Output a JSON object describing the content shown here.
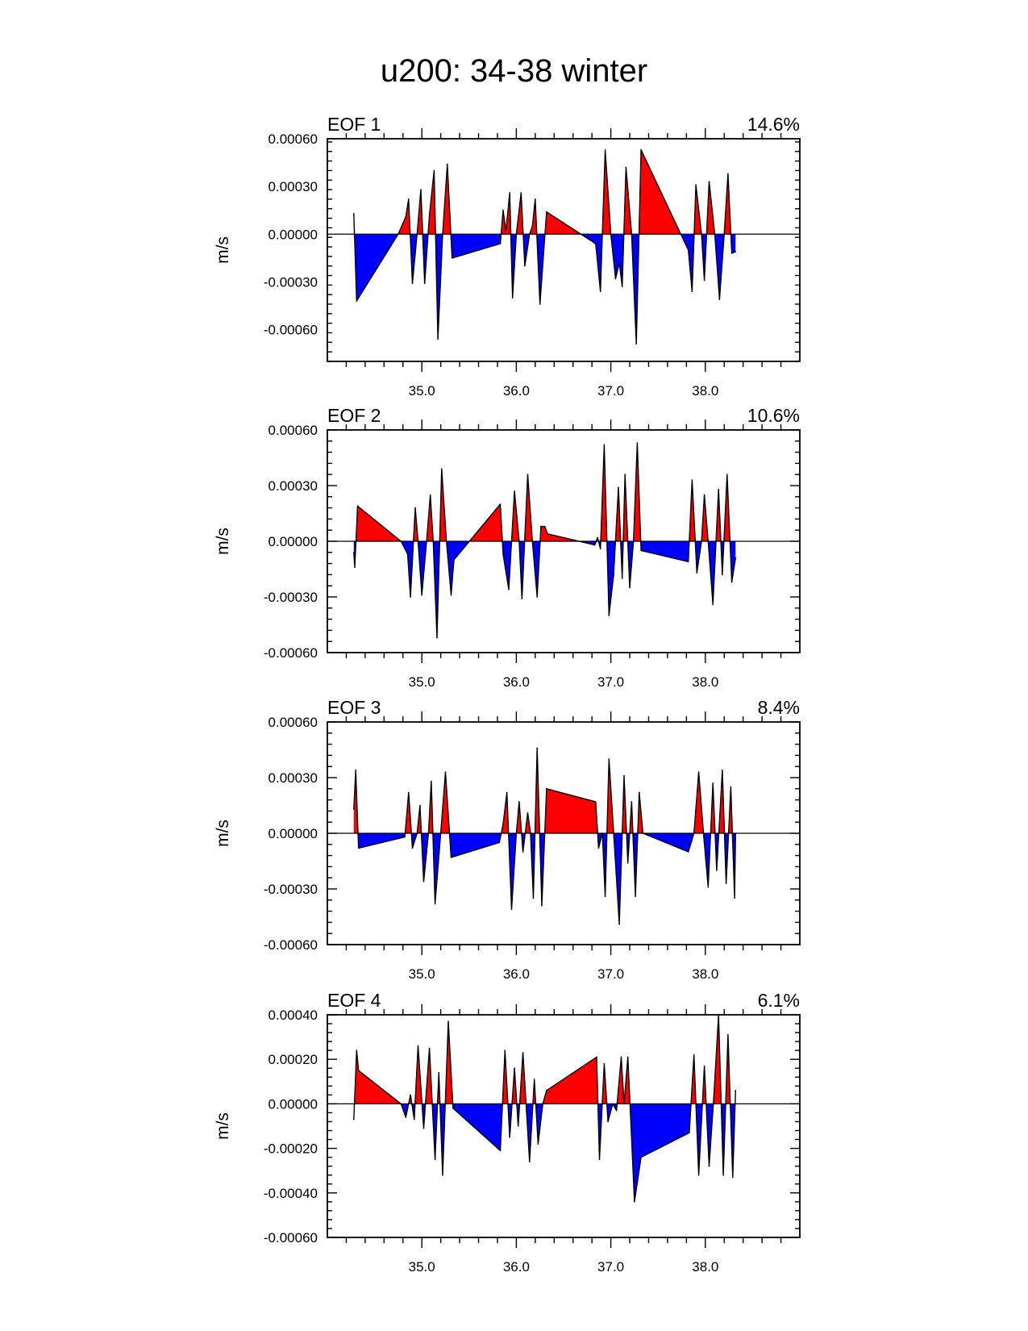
{
  "title": "u200: 34-38 winter",
  "colors": {
    "positive": "#ff0000",
    "negative": "#0000ff",
    "line": "#000000"
  },
  "chart_data": [
    {
      "type": "area",
      "panel_label": "EOF 1",
      "variance_label": "14.6%",
      "ylabel": "m/s",
      "ylim": [
        -0.0008,
        0.0006
      ],
      "yticks": [
        -0.0006,
        -0.0003,
        0.0,
        0.0003,
        0.0006
      ],
      "ytick_labels": [
        "-0.00060",
        "-0.00030",
        "0.00000",
        "0.00030",
        "0.00060"
      ],
      "xlim": [
        34.0,
        39.0
      ],
      "xticks": [
        35.0,
        36.0,
        37.0,
        38.0
      ],
      "xtick_labels": [
        "35.0",
        "36.0",
        "37.0",
        "38.0"
      ],
      "points": [
        [
          34.28,
          0.00013
        ],
        [
          34.31,
          -0.00042
        ],
        [
          34.75,
          0.0
        ],
        [
          34.83,
          0.00011
        ],
        [
          34.86,
          0.00022
        ],
        [
          34.9,
          -0.00031
        ],
        [
          34.95,
          0.0
        ],
        [
          34.99,
          0.00028
        ],
        [
          35.03,
          -0.00031
        ],
        [
          35.08,
          0.00012
        ],
        [
          35.13,
          0.0004
        ],
        [
          35.17,
          -0.00066
        ],
        [
          35.22,
          0.0
        ],
        [
          35.27,
          0.00044
        ],
        [
          35.32,
          -0.00015
        ],
        [
          35.83,
          -6e-05
        ],
        [
          35.86,
          0.00015
        ],
        [
          35.89,
          2e-05
        ],
        [
          35.93,
          0.00026
        ],
        [
          35.96,
          -0.0004
        ],
        [
          36.0,
          0.0
        ],
        [
          36.05,
          0.00026
        ],
        [
          36.09,
          -0.0002
        ],
        [
          36.14,
          0.0
        ],
        [
          36.17,
          5e-05
        ],
        [
          36.2,
          0.00022
        ],
        [
          36.25,
          -0.00044
        ],
        [
          36.32,
          0.00014
        ],
        [
          36.84,
          -6e-05
        ],
        [
          36.89,
          -0.00036
        ],
        [
          36.94,
          0.00053
        ],
        [
          37.0,
          0.0
        ],
        [
          37.05,
          -0.00028
        ],
        [
          37.09,
          -0.00018
        ],
        [
          37.12,
          -0.00033
        ],
        [
          37.16,
          0.00042
        ],
        [
          37.22,
          0.0
        ],
        [
          37.27,
          -0.00069
        ],
        [
          37.32,
          0.00053
        ],
        [
          37.82,
          -0.0001
        ],
        [
          37.86,
          -0.00036
        ],
        [
          37.9,
          0.00031
        ],
        [
          37.96,
          0.0
        ],
        [
          37.99,
          -0.00029
        ],
        [
          38.04,
          0.00033
        ],
        [
          38.1,
          0.0
        ],
        [
          38.15,
          -0.00041
        ],
        [
          38.2,
          0.0
        ],
        [
          38.24,
          0.00038
        ],
        [
          38.28,
          -0.00012
        ],
        [
          38.32,
          -0.00011
        ]
      ]
    },
    {
      "type": "area",
      "panel_label": "EOF 2",
      "variance_label": "10.6%",
      "ylabel": "m/s",
      "ylim": [
        -0.0006,
        0.0006
      ],
      "yticks": [
        -0.0006,
        -0.0003,
        0.0,
        0.0003,
        0.0006
      ],
      "ytick_labels": [
        "-0.00060",
        "-0.00030",
        "0.00000",
        "0.00030",
        "0.00060"
      ],
      "xlim": [
        34.0,
        39.0
      ],
      "xticks": [
        35.0,
        36.0,
        37.0,
        38.0
      ],
      "xtick_labels": [
        "35.0",
        "36.0",
        "37.0",
        "38.0"
      ],
      "points": [
        [
          34.28,
          -6e-05
        ],
        [
          34.29,
          -0.00014
        ],
        [
          34.32,
          0.00019
        ],
        [
          34.78,
          0.0
        ],
        [
          34.85,
          -7e-05
        ],
        [
          34.88,
          -0.0003
        ],
        [
          34.93,
          0.00018
        ],
        [
          34.96,
          0.0
        ],
        [
          35.0,
          -0.00029
        ],
        [
          35.05,
          0.0
        ],
        [
          35.09,
          0.00025
        ],
        [
          35.12,
          0.0
        ],
        [
          35.16,
          -0.00052
        ],
        [
          35.21,
          0.00039
        ],
        [
          35.26,
          0.0
        ],
        [
          35.31,
          -0.00029
        ],
        [
          35.34,
          -0.0001
        ],
        [
          35.83,
          0.0002
        ],
        [
          35.86,
          -7e-05
        ],
        [
          35.92,
          -0.00026
        ],
        [
          35.98,
          0.00027
        ],
        [
          36.03,
          0.0
        ],
        [
          36.06,
          -0.00031
        ],
        [
          36.12,
          0.00036
        ],
        [
          36.17,
          0.0
        ],
        [
          36.22,
          -0.0003
        ],
        [
          36.26,
          8e-05
        ],
        [
          36.3,
          8e-05
        ],
        [
          36.33,
          4e-05
        ],
        [
          36.83,
          -2e-05
        ],
        [
          36.86,
          2e-05
        ],
        [
          36.89,
          -4e-05
        ],
        [
          36.93,
          0.00052
        ],
        [
          36.98,
          -0.0004
        ],
        [
          37.03,
          -0.00018
        ],
        [
          37.08,
          0.00029
        ],
        [
          37.12,
          -0.0002
        ],
        [
          37.15,
          0.00036
        ],
        [
          37.2,
          -0.00025
        ],
        [
          37.24,
          0.0
        ],
        [
          37.28,
          0.00053
        ],
        [
          37.32,
          -5e-05
        ],
        [
          37.82,
          -0.00011
        ],
        [
          37.86,
          0.00033
        ],
        [
          37.91,
          -0.00017
        ],
        [
          37.96,
          0.0
        ],
        [
          37.99,
          0.00025
        ],
        [
          38.03,
          0.0
        ],
        [
          38.08,
          -0.00034
        ],
        [
          38.14,
          0.00028
        ],
        [
          38.18,
          -0.00018
        ],
        [
          38.23,
          0.00036
        ],
        [
          38.28,
          -0.00022
        ],
        [
          38.32,
          -9e-05
        ]
      ]
    },
    {
      "type": "area",
      "panel_label": "EOF 3",
      "variance_label": "8.4%",
      "ylabel": "m/s",
      "ylim": [
        -0.0006,
        0.0006
      ],
      "yticks": [
        -0.0006,
        -0.0003,
        0.0,
        0.0003,
        0.0006
      ],
      "ytick_labels": [
        "-0.00060",
        "-0.00030",
        "0.00000",
        "0.00030",
        "0.00060"
      ],
      "xlim": [
        34.0,
        39.0
      ],
      "xticks": [
        35.0,
        36.0,
        37.0,
        38.0
      ],
      "xtick_labels": [
        "35.0",
        "36.0",
        "37.0",
        "38.0"
      ],
      "points": [
        [
          34.28,
          0.00013
        ],
        [
          34.3,
          0.00034
        ],
        [
          34.33,
          -8e-05
        ],
        [
          34.82,
          -2e-05
        ],
        [
          34.86,
          0.00022
        ],
        [
          34.9,
          -8e-05
        ],
        [
          34.95,
          0.0
        ],
        [
          34.98,
          0.00015
        ],
        [
          35.02,
          -0.00026
        ],
        [
          35.07,
          0.0
        ],
        [
          35.1,
          0.00028
        ],
        [
          35.14,
          -0.00038
        ],
        [
          35.2,
          0.0
        ],
        [
          35.25,
          0.00033
        ],
        [
          35.31,
          -0.00013
        ],
        [
          35.82,
          -5e-05
        ],
        [
          35.86,
          5e-05
        ],
        [
          35.9,
          0.00022
        ],
        [
          35.95,
          -0.00041
        ],
        [
          36.0,
          0.0
        ],
        [
          36.03,
          0.00017
        ],
        [
          36.07,
          -0.0001
        ],
        [
          36.12,
          0.00011
        ],
        [
          36.15,
          0.0
        ],
        [
          36.18,
          -0.00035
        ],
        [
          36.22,
          0.00046
        ],
        [
          36.27,
          -0.00039
        ],
        [
          36.32,
          0.00024
        ],
        [
          36.84,
          0.00017
        ],
        [
          36.87,
          -8e-05
        ],
        [
          36.91,
          0.0
        ],
        [
          36.94,
          -0.00034
        ],
        [
          36.98,
          0.0004
        ],
        [
          37.03,
          0.0
        ],
        [
          37.09,
          -0.00049
        ],
        [
          37.14,
          0.00031
        ],
        [
          37.18,
          -0.00016
        ],
        [
          37.22,
          0.00017
        ],
        [
          37.26,
          -0.00034
        ],
        [
          37.3,
          0.00022
        ],
        [
          37.34,
          0.0
        ],
        [
          37.82,
          -0.0001
        ],
        [
          37.88,
          0.0
        ],
        [
          37.93,
          0.00033
        ],
        [
          37.98,
          0.0
        ],
        [
          38.03,
          -0.00029
        ],
        [
          38.08,
          0.00027
        ],
        [
          38.12,
          -0.0002
        ],
        [
          38.18,
          0.00034
        ],
        [
          38.22,
          -0.00027
        ],
        [
          38.27,
          0.00025
        ],
        [
          38.31,
          -0.00035
        ],
        [
          38.32,
          0.0
        ]
      ]
    },
    {
      "type": "area",
      "panel_label": "EOF 4",
      "variance_label": "6.1%",
      "ylabel": "m/s",
      "ylim": [
        -0.0006,
        0.0004
      ],
      "yticks": [
        -0.0006,
        -0.0004,
        -0.0002,
        0.0,
        0.0002,
        0.0004
      ],
      "ytick_labels": [
        "-0.00060",
        "-0.00040",
        "-0.00020",
        "0.00000",
        "0.00020",
        "0.00040"
      ],
      "xlim": [
        34.0,
        39.0
      ],
      "xticks": [
        35.0,
        36.0,
        37.0,
        38.0
      ],
      "xtick_labels": [
        "35.0",
        "36.0",
        "37.0",
        "38.0"
      ],
      "points": [
        [
          34.28,
          -7e-05
        ],
        [
          34.31,
          0.00024
        ],
        [
          34.33,
          0.00015
        ],
        [
          34.78,
          0.0
        ],
        [
          34.83,
          -6e-05
        ],
        [
          34.88,
          4e-05
        ],
        [
          34.92,
          -7e-05
        ],
        [
          34.96,
          0.00026
        ],
        [
          35.02,
          -0.00011
        ],
        [
          35.08,
          0.00025
        ],
        [
          35.14,
          -0.00025
        ],
        [
          35.18,
          0.00014
        ],
        [
          35.22,
          -0.00032
        ],
        [
          35.28,
          0.00037
        ],
        [
          35.33,
          -2e-05
        ],
        [
          35.83,
          -0.00021
        ],
        [
          35.88,
          0.00024
        ],
        [
          35.93,
          -0.00015
        ],
        [
          35.98,
          0.00016
        ],
        [
          36.02,
          -0.0001
        ],
        [
          36.07,
          0.00023
        ],
        [
          36.1,
          2e-05
        ],
        [
          36.14,
          -0.00026
        ],
        [
          36.19,
          0.00011
        ],
        [
          36.23,
          -0.00018
        ],
        [
          36.28,
          0.0
        ],
        [
          36.32,
          6e-05
        ],
        [
          36.85,
          0.00021
        ],
        [
          36.88,
          -0.00025
        ],
        [
          36.93,
          0.00018
        ],
        [
          36.97,
          -8e-05
        ],
        [
          37.02,
          0.0
        ],
        [
          37.06,
          -3e-05
        ],
        [
          37.11,
          0.00021
        ],
        [
          37.14,
          0.0
        ],
        [
          37.18,
          0.00021
        ],
        [
          37.25,
          -0.00044
        ],
        [
          37.32,
          -0.00024
        ],
        [
          37.83,
          -0.00013
        ],
        [
          37.88,
          0.00022
        ],
        [
          37.93,
          -0.00032
        ],
        [
          37.99,
          0.00017
        ],
        [
          38.04,
          -0.00028
        ],
        [
          38.09,
          3e-05
        ],
        [
          38.14,
          0.0004
        ],
        [
          38.19,
          -0.00032
        ],
        [
          38.24,
          0.00031
        ],
        [
          38.29,
          -0.00033
        ],
        [
          38.32,
          6e-05
        ]
      ]
    }
  ]
}
